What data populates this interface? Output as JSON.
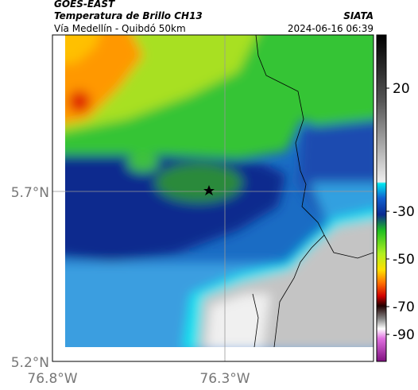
{
  "header": {
    "title": "GOES-EAST",
    "subtitle": "Temperatura de Brillo CH13",
    "source": "SIATA",
    "route": "Vía Medellín - Quibdó 50km",
    "timestamp": "2024-06-16 06:39"
  },
  "map": {
    "lat_ticks": [
      "5.7°N",
      "5.2°N"
    ],
    "lon_ticks": [
      "76.8°W",
      "76.3°W"
    ]
  },
  "colorbar": {
    "ticks": [
      20,
      -30,
      -50,
      -70,
      -90
    ]
  }
}
